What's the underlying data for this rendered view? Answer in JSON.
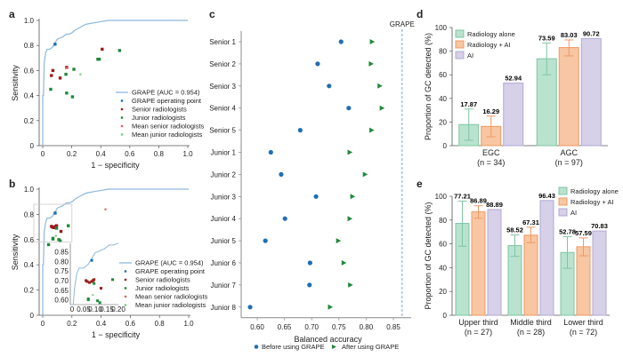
{
  "chart_data": [
    {
      "panel": "a",
      "type": "scatter",
      "xlabel": "1 − specificity",
      "ylabel": "Sensitivity",
      "xlim": [
        0,
        1
      ],
      "ylim": [
        0,
        1
      ],
      "xticks": [
        "0",
        "0.2",
        "0.4",
        "0.6",
        "0.8",
        "1.0"
      ],
      "yticks": [
        "0",
        "0.2",
        "0.4",
        "0.6",
        "0.8",
        "1.0"
      ],
      "roc_curve": {
        "name": "GRAPE (AUC = 0.954)",
        "x": [
          0,
          0,
          0.005,
          0.01,
          0.015,
          0.02,
          0.03,
          0.05,
          0.06,
          0.07,
          0.08,
          0.09,
          0.1,
          0.12,
          0.14,
          0.16,
          0.18,
          0.2,
          0.22,
          0.25,
          0.28,
          0.3,
          0.35,
          0.4,
          0.45,
          0.5,
          0.6,
          0.8,
          1.0
        ],
        "y": [
          0,
          0.4,
          0.4,
          0.66,
          0.7,
          0.74,
          0.77,
          0.77,
          0.78,
          0.79,
          0.81,
          0.83,
          0.85,
          0.86,
          0.87,
          0.89,
          0.89,
          0.9,
          0.92,
          0.94,
          0.96,
          0.97,
          0.98,
          0.99,
          1.0,
          1.0,
          1.0,
          1.0,
          1.0
        ]
      },
      "series": [
        {
          "name": "GRAPE operating point",
          "points": [
            [
              0.085,
              0.81
            ]
          ]
        },
        {
          "name": "Senior radiologists",
          "points": [
            [
              0.41,
              0.77
            ],
            [
              0.07,
              0.6
            ],
            [
              0.06,
              0.56
            ],
            [
              0.165,
              0.625
            ],
            [
              0.12,
              0.54
            ]
          ]
        },
        {
          "name": "Junior radiologists",
          "points": [
            [
              0.53,
              0.76
            ],
            [
              0.38,
              0.69
            ],
            [
              0.39,
              0.69
            ],
            [
              0.215,
              0.61
            ],
            [
              0.16,
              0.57
            ],
            [
              0.055,
              0.45
            ],
            [
              0.165,
              0.42
            ],
            [
              0.205,
              0.39
            ]
          ]
        },
        {
          "name": "Mean senior radiologists",
          "points": [
            [
              0.165,
              0.62
            ]
          ]
        },
        {
          "name": "Mean junior radiologists",
          "points": [
            [
              0.26,
              0.57
            ]
          ]
        }
      ]
    },
    {
      "panel": "b",
      "type": "scatter",
      "xlabel": "1 − specificity",
      "ylabel": "Sensitivity",
      "xlim": [
        0,
        1
      ],
      "ylim": [
        0,
        1
      ],
      "xticks": [
        "0",
        "0.2",
        "0.4",
        "0.6",
        "0.8",
        "1.0"
      ],
      "yticks": [
        "0",
        "0.2",
        "0.4",
        "0.6",
        "0.8",
        "1.0"
      ],
      "inset": {
        "xlim": [
          0,
          0.2
        ],
        "ylim": [
          0.58,
          0.88
        ],
        "xticks": [
          "0",
          "0.05",
          "0.10",
          "0.15",
          "0.20"
        ],
        "yticks": [
          "0.60",
          "0.65",
          "0.70",
          "0.75",
          "0.80",
          "0.85"
        ]
      },
      "series": [
        {
          "name": "GRAPE operating point",
          "points": [
            [
              0.085,
              0.81
            ]
          ]
        },
        {
          "name": "Senior radiologists",
          "points": [
            [
              0.06,
              0.705
            ],
            [
              0.065,
              0.7
            ],
            [
              0.075,
              0.695
            ],
            [
              0.085,
              0.7
            ],
            [
              0.09,
              0.705
            ],
            [
              0.095,
              0.71
            ],
            [
              0.125,
              0.665
            ]
          ]
        },
        {
          "name": "Junior radiologists",
          "points": [
            [
              0.175,
              0.71
            ],
            [
              0.095,
              0.69
            ],
            [
              0.07,
              0.61
            ],
            [
              0.07,
              0.605
            ],
            [
              0.11,
              0.6
            ],
            [
              0.12,
              0.59
            ],
            [
              0.04,
              0.56
            ]
          ]
        },
        {
          "name": "Mean senior radiologists",
          "points": [
            [
              0.43,
              0.84
            ]
          ]
        },
        {
          "name": "Mean junior radiologists",
          "points": [
            [
              0.09,
              0.63
            ]
          ]
        }
      ]
    },
    {
      "panel": "c",
      "type": "scatter",
      "xlabel": "Balanced accuracy",
      "xlim": [
        0.58,
        0.875
      ],
      "xticks": [
        "0.60",
        "0.65",
        "0.70",
        "0.75",
        "0.80",
        "0.85"
      ],
      "categories": [
        "Senior 1",
        "Senior 2",
        "Senior 3",
        "Senior 4",
        "Senior 5",
        "Junior 1",
        "Junior 2",
        "Junior 3",
        "Junior 4",
        "Junior 5",
        "Junior 6",
        "Junior 7",
        "Junior 8"
      ],
      "series": [
        {
          "name": "Before using GRAPE",
          "values": [
            0.754,
            0.711,
            0.732,
            0.768,
            0.679,
            0.625,
            0.644,
            0.708,
            0.651,
            0.615,
            0.697,
            0.696,
            0.587
          ]
        },
        {
          "name": "After using GRAPE",
          "values": [
            0.811,
            0.809,
            0.825,
            0.829,
            0.81,
            0.77,
            0.798,
            0.775,
            0.77,
            0.749,
            0.759,
            0.771,
            0.734
          ]
        }
      ],
      "reference_line": {
        "label": "GRAPE",
        "value": 0.866
      }
    },
    {
      "panel": "d",
      "type": "bar",
      "ylabel": "Proportion of GC detected (%)",
      "ylim": [
        0,
        100
      ],
      "yticks": [
        "0",
        "20",
        "40",
        "60",
        "80",
        "100"
      ],
      "categories": [
        "EGC",
        "AGC"
      ],
      "category_n": [
        "(n = 34)",
        "(n = 97)"
      ],
      "legend": "top-left",
      "series": [
        {
          "name": "Radiology alone",
          "values": [
            17.87,
            73.59
          ],
          "err_low": [
            4.5,
            60
          ],
          "err_high": [
            31,
            87
          ],
          "labels": [
            "17.87",
            "73.59"
          ]
        },
        {
          "name": "Radiology + AI",
          "values": [
            16.29,
            83.03
          ],
          "err_low": [
            7.5,
            76
          ],
          "err_high": [
            25,
            89.5
          ],
          "labels": [
            "16.29",
            "83.03"
          ]
        },
        {
          "name": "AI",
          "values": [
            52.94,
            90.72
          ],
          "labels": [
            "52.94",
            "90.72"
          ]
        }
      ]
    },
    {
      "panel": "e",
      "type": "bar",
      "ylabel": "Proportion of GC detected (%)",
      "ylim": [
        0,
        100
      ],
      "yticks": [
        "0",
        "20",
        "40",
        "60",
        "80",
        "100"
      ],
      "categories": [
        "Upper third",
        "Middle third",
        "Lower third"
      ],
      "category_n": [
        "(n = 27)",
        "(n = 28)",
        "(n = 72)"
      ],
      "legend": "top-right",
      "series": [
        {
          "name": "Radiology alone",
          "values": [
            77.21,
            58.52,
            52.78
          ],
          "err_low": [
            58,
            49.5,
            39.5
          ],
          "err_high": [
            96,
            67.5,
            66
          ],
          "labels": [
            "77.21",
            "58.52",
            "52.78"
          ]
        },
        {
          "name": "Radiology + AI",
          "values": [
            86.89,
            67.31,
            57.59
          ],
          "err_low": [
            81.5,
            61,
            50
          ],
          "err_high": [
            92,
            74,
            65
          ],
          "labels": [
            "86.89",
            "67.31",
            "57.59"
          ]
        },
        {
          "name": "AI",
          "values": [
            88.89,
            96.43,
            70.83
          ],
          "labels": [
            "88.89",
            "96.43",
            "70.83"
          ]
        }
      ]
    }
  ],
  "panel_letters": [
    "a",
    "b",
    "c",
    "d",
    "e"
  ],
  "colors": {
    "roc": "#8db8dc",
    "grape_point": "#1f6fb5",
    "senior": "#9b1c1c",
    "junior": "#1e8a3a",
    "mean_senior": "#e0606a",
    "mean_junior": "#7cc98a",
    "before": "#1f6fb5",
    "after": "#1e8a3a",
    "ref_line": "#8db8dc",
    "bar_radiology": "#b9e3cf",
    "bar_radiology_edge": "#7fc5a3",
    "bar_radiology_ai": "#f8c6a2",
    "bar_radiology_ai_edge": "#ef9a63",
    "bar_ai": "#d6d0e8",
    "bar_ai_edge": "#b3a9d3"
  }
}
